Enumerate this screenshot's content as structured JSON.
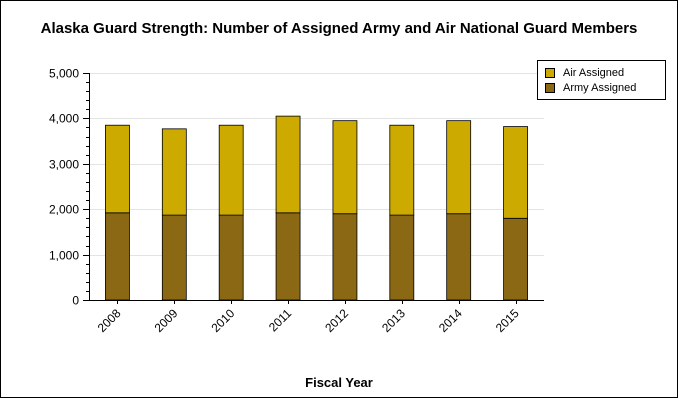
{
  "chart_data": {
    "type": "bar",
    "stacked": true,
    "title": "Alaska Guard Strength: Number of Assigned Army and Air National Guard Members",
    "xlabel": "Fiscal Year",
    "ylabel": "",
    "categories": [
      "2008",
      "2009",
      "2010",
      "2011",
      "2012",
      "2013",
      "2014",
      "2015"
    ],
    "series": [
      {
        "name": "Army Assigned",
        "color": "#8B6914",
        "values": [
          1920,
          1870,
          1870,
          1920,
          1900,
          1870,
          1900,
          1800
        ]
      },
      {
        "name": "Air Assigned",
        "color": "#CCAA00",
        "values": [
          1930,
          1900,
          1980,
          2130,
          2050,
          1980,
          2050,
          2020
        ]
      }
    ],
    "ylim": [
      0,
      5000
    ],
    "yticks": [
      0,
      1000,
      2000,
      3000,
      4000,
      5000
    ],
    "ytick_labels": [
      "0",
      "1,000",
      "2,000",
      "3,000",
      "4,000",
      "5,000"
    ],
    "grid": true,
    "legend_position": "top-right",
    "legend": [
      {
        "name": "Air Assigned",
        "color": "#CCAA00"
      },
      {
        "name": "Army Assigned",
        "color": "#8B6914"
      }
    ]
  }
}
